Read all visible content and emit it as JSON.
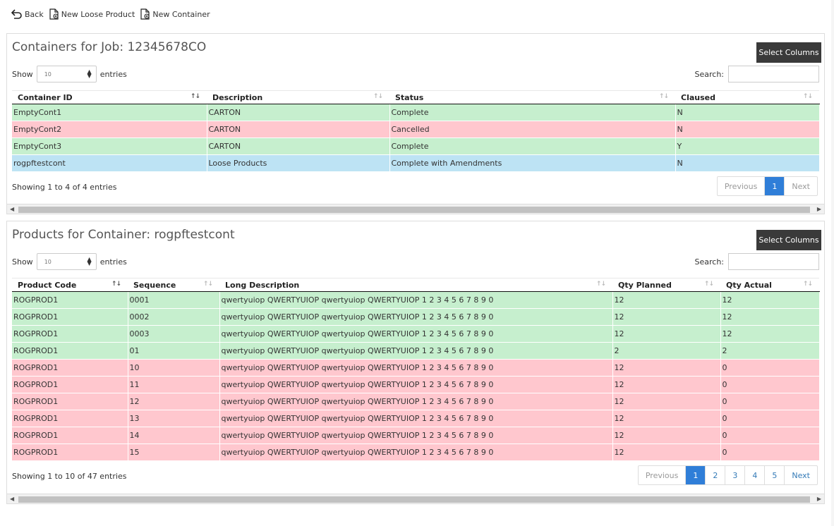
{
  "toolbar": {
    "back_label": "Back",
    "new_loose_product_label": "New Loose Product",
    "new_container_label": "New Container"
  },
  "containers": {
    "title": "Containers for Job: 12345678CO",
    "select_columns_label": "Select Columns",
    "show_label": "Show",
    "entries_label": "entries",
    "page_length": "10",
    "search_label": "Search:",
    "search_value": "",
    "columns": [
      "Container ID",
      "Description",
      "Status",
      "Claused"
    ],
    "rows": [
      {
        "status_color": "green",
        "cells": [
          "EmptyCont1",
          "CARTON",
          "Complete",
          "N"
        ]
      },
      {
        "status_color": "red",
        "cells": [
          "EmptyCont2",
          "CARTON",
          "Cancelled",
          "N"
        ]
      },
      {
        "status_color": "green",
        "cells": [
          "EmptyCont3",
          "CARTON",
          "Complete",
          "Y"
        ]
      },
      {
        "status_color": "blue",
        "cells": [
          "rogpftestcont",
          "Loose Products",
          "Complete with Amendments",
          "N"
        ]
      }
    ],
    "info": "Showing 1 to 4 of 4 entries",
    "pagination": {
      "previous": "Previous",
      "pages": [
        "1"
      ],
      "current": "1",
      "next": "Next"
    }
  },
  "products": {
    "title": "Products for Container: rogpftestcont",
    "select_columns_label": "Select Columns",
    "show_label": "Show",
    "entries_label": "entries",
    "page_length": "10",
    "search_label": "Search:",
    "search_value": "",
    "columns": [
      "Product Code",
      "Sequence",
      "Long Description",
      "Qty Planned",
      "Qty Actual"
    ],
    "rows": [
      {
        "status_color": "green",
        "cells": [
          "ROGPROD1",
          "0001",
          "qwertyuiop QWERTYUIOP qwertyuiop QWERTYUIOP 1 2 3 4 5 6 7 8 9 0",
          "12",
          "12"
        ]
      },
      {
        "status_color": "green",
        "cells": [
          "ROGPROD1",
          "0002",
          "qwertyuiop QWERTYUIOP qwertyuiop QWERTYUIOP 1 2 3 4 5 6 7 8 9 0",
          "12",
          "12"
        ]
      },
      {
        "status_color": "green",
        "cells": [
          "ROGPROD1",
          "0003",
          "qwertyuiop QWERTYUIOP qwertyuiop QWERTYUIOP 1 2 3 4 5 6 7 8 9 0",
          "12",
          "12"
        ]
      },
      {
        "status_color": "green",
        "cells": [
          "ROGPROD1",
          "01",
          "qwertyuiop QWERTYUIOP qwertyuiop QWERTYUIOP 1 2 3 4 5 6 7 8 9 0",
          "2",
          "2"
        ]
      },
      {
        "status_color": "red",
        "cells": [
          "ROGPROD1",
          "10",
          "qwertyuiop QWERTYUIOP qwertyuiop QWERTYUIOP 1 2 3 4 5 6 7 8 9 0",
          "12",
          "0"
        ]
      },
      {
        "status_color": "red",
        "cells": [
          "ROGPROD1",
          "11",
          "qwertyuiop QWERTYUIOP qwertyuiop QWERTYUIOP 1 2 3 4 5 6 7 8 9 0",
          "12",
          "0"
        ]
      },
      {
        "status_color": "red",
        "cells": [
          "ROGPROD1",
          "12",
          "qwertyuiop QWERTYUIOP qwertyuiop QWERTYUIOP 1 2 3 4 5 6 7 8 9 0",
          "12",
          "0"
        ]
      },
      {
        "status_color": "red",
        "cells": [
          "ROGPROD1",
          "13",
          "qwertyuiop QWERTYUIOP qwertyuiop QWERTYUIOP 1 2 3 4 5 6 7 8 9 0",
          "12",
          "0"
        ]
      },
      {
        "status_color": "red",
        "cells": [
          "ROGPROD1",
          "14",
          "qwertyuiop QWERTYUIOP qwertyuiop QWERTYUIOP 1 2 3 4 5 6 7 8 9 0",
          "12",
          "0"
        ]
      },
      {
        "status_color": "red",
        "cells": [
          "ROGPROD1",
          "15",
          "qwertyuiop QWERTYUIOP qwertyuiop QWERTYUIOP 1 2 3 4 5 6 7 8 9 0",
          "12",
          "0"
        ]
      }
    ],
    "info": "Showing 1 to 10 of 47 entries",
    "pagination": {
      "previous": "Previous",
      "pages": [
        "1",
        "2",
        "3",
        "4",
        "5"
      ],
      "current": "1",
      "next": "Next"
    }
  },
  "colors": {
    "green": "#c6efce",
    "red": "#ffc7ce",
    "blue": "#bde3f4",
    "accent": "#2f7ed8",
    "button_dark": "#3a3a3a"
  }
}
